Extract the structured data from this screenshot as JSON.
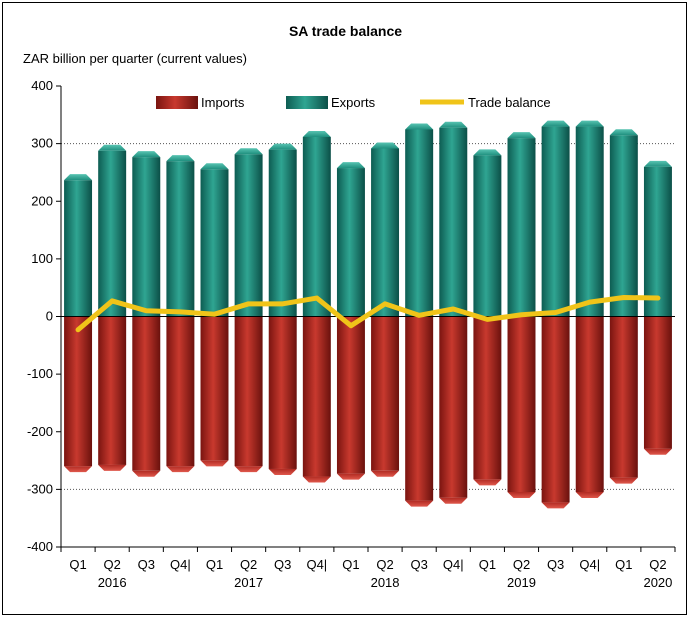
{
  "chart_data": {
    "type": "bar",
    "title": "SA trade balance",
    "ylabel": "ZAR billion per quarter (current values)",
    "ylim": [
      -400,
      400
    ],
    "yticks": [
      400,
      300,
      200,
      100,
      0,
      -100,
      -200,
      -300,
      -400
    ],
    "grid": "dotted horizontal at 300 and -300",
    "legend_position": "top",
    "categories": [
      "Q1",
      "Q2",
      "Q3",
      "Q4|",
      "Q1",
      "Q2",
      "Q3",
      "Q4|",
      "Q1",
      "Q2",
      "Q3",
      "Q4|",
      "Q1",
      "Q2",
      "Q3",
      "Q4|",
      "Q1",
      "Q2"
    ],
    "year_labels": [
      {
        "index": 1,
        "label": "2016"
      },
      {
        "index": 5,
        "label": "2017"
      },
      {
        "index": 9,
        "label": "2018"
      },
      {
        "index": 13,
        "label": "2019"
      },
      {
        "index": 17,
        "label": "2020"
      }
    ],
    "series": [
      {
        "name": "Imports",
        "type": "bar",
        "color": "#b02a22",
        "values": [
          -270,
          -268,
          -278,
          -270,
          -260,
          -270,
          -275,
          -288,
          -283,
          -278,
          -330,
          -325,
          -293,
          -315,
          -333,
          -315,
          -290,
          -240
        ]
      },
      {
        "name": "Exports",
        "type": "bar",
        "color": "#1f8f7e",
        "values": [
          247,
          298,
          287,
          280,
          266,
          292,
          300,
          322,
          268,
          302,
          335,
          338,
          290,
          320,
          340,
          340,
          325,
          270
        ]
      },
      {
        "name": "Trade balance",
        "type": "line",
        "color": "#f0c419",
        "values": [
          -23,
          27,
          10,
          8,
          4,
          22,
          22,
          32,
          -16,
          22,
          2,
          13,
          -5,
          3,
          7,
          25,
          33,
          32
        ]
      }
    ]
  }
}
